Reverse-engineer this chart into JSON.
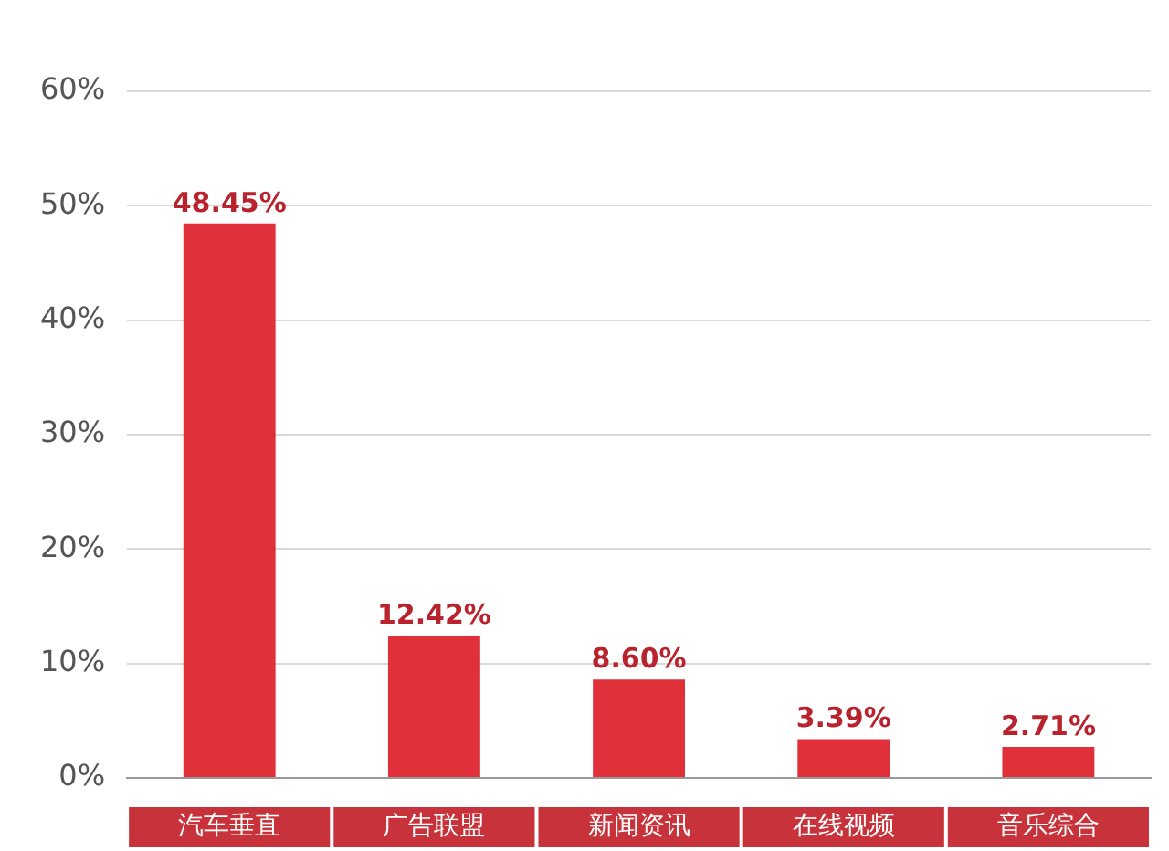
{
  "chart_data": {
    "type": "bar",
    "categories": [
      "汽车垂直",
      "广告联盟",
      "新闻资讯",
      "在线视频",
      "音乐综合"
    ],
    "values": [
      48.45,
      12.42,
      8.6,
      3.39,
      2.71
    ],
    "color": "#e0303a",
    "value_labels": [
      "48.45%",
      "12.42%",
      "8.60%",
      "3.39%",
      "2.71%"
    ],
    "ylim": [
      0,
      60
    ],
    "yticks": [
      {
        "value": 0,
        "label": "0%"
      },
      {
        "value": 10,
        "label": "10%"
      },
      {
        "value": 20,
        "label": "20%"
      },
      {
        "value": 30,
        "label": "30%"
      },
      {
        "value": 40,
        "label": "40%"
      },
      {
        "value": 50,
        "label": "50%"
      },
      {
        "value": 60,
        "label": "60%"
      }
    ],
    "grid": "y",
    "legend": false
  }
}
